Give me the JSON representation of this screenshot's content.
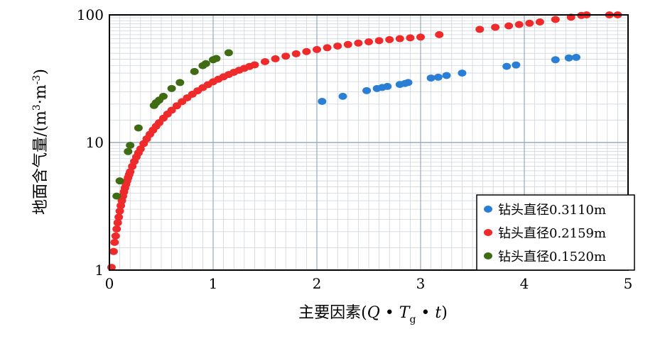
{
  "chart_data": {
    "type": "scatter",
    "title": "",
    "xlabel": "主要因素(Q • T g • t)",
    "xlabel_parts": {
      "prefix": "主要因素(",
      "q": "Q",
      "dot1": " • ",
      "t": "T",
      "sub": "g",
      "dot2": " • ",
      "tt": "t",
      "suffix": ")"
    },
    "ylabel": "地面含气量/(m³·m⁻³)",
    "ylabel_parts": {
      "prefix": "地面含气量/(m",
      "sup1": "3",
      "mid": "·m",
      "sup2": "-3",
      "suffix": ")"
    },
    "xlim": [
      0,
      5
    ],
    "ylim": [
      1,
      100
    ],
    "y_scale": "log",
    "grid": true,
    "legend_position": "bottom-right",
    "x_ticks": [
      "0",
      "1",
      "2",
      "3",
      "4",
      "5"
    ],
    "x_tick_values": [
      0,
      1,
      2,
      3,
      4,
      5
    ],
    "y_ticks": [
      "1",
      "10",
      "100"
    ],
    "y_tick_values": [
      1,
      10,
      100
    ],
    "series": [
      {
        "name": "钻头直径0.3110m",
        "color": "#2a7fd4",
        "x": [
          2.05,
          2.25,
          2.48,
          2.58,
          2.63,
          2.68,
          2.8,
          2.85,
          2.88,
          3.1,
          3.17,
          3.25,
          3.4,
          3.83,
          3.92,
          4.3,
          4.43,
          4.5
        ],
        "y": [
          21,
          23,
          25.5,
          26.5,
          27,
          27.5,
          28.5,
          29,
          29.5,
          32,
          32.5,
          33.5,
          35,
          39.5,
          40.5,
          44.5,
          46,
          46.5
        ]
      },
      {
        "name": "钻头直径0.2159m",
        "color": "#ee2a2a",
        "x": [
          0.02,
          0.04,
          0.05,
          0.06,
          0.07,
          0.08,
          0.09,
          0.1,
          0.11,
          0.12,
          0.13,
          0.14,
          0.15,
          0.16,
          0.17,
          0.18,
          0.19,
          0.2,
          0.22,
          0.24,
          0.26,
          0.28,
          0.3,
          0.33,
          0.36,
          0.39,
          0.42,
          0.45,
          0.48,
          0.52,
          0.56,
          0.6,
          0.65,
          0.7,
          0.75,
          0.8,
          0.85,
          0.9,
          0.95,
          1.0,
          1.05,
          1.1,
          1.15,
          1.2,
          1.25,
          1.3,
          1.35,
          1.4,
          1.5,
          1.6,
          1.7,
          1.8,
          1.9,
          2.0,
          2.1,
          2.2,
          2.3,
          2.4,
          2.5,
          2.6,
          2.7,
          2.8,
          2.9,
          3.0,
          3.18,
          3.57,
          3.72,
          3.85,
          3.95,
          4.05,
          4.15,
          4.3,
          4.45,
          4.55,
          4.6,
          4.82,
          4.9
        ],
        "y": [
          1.05,
          1.4,
          1.65,
          1.85,
          2.1,
          2.35,
          2.6,
          2.9,
          3.2,
          3.5,
          3.8,
          4.1,
          4.4,
          4.7,
          5.0,
          5.3,
          5.6,
          5.9,
          6.5,
          7.1,
          7.7,
          8.3,
          8.9,
          9.8,
          10.7,
          11.6,
          12.5,
          13.4,
          14.3,
          15.5,
          16.7,
          17.9,
          19.4,
          20.9,
          22.4,
          23.9,
          25.4,
          26.9,
          28.4,
          29.9,
          31.3,
          32.7,
          34.1,
          35.5,
          36.8,
          38.1,
          39.4,
          40.6,
          43.0,
          45.3,
          47.5,
          49.6,
          51.6,
          53.5,
          55.3,
          57.0,
          58.6,
          60.1,
          61.5,
          62.8,
          64.0,
          65.1,
          66.1,
          67.0,
          70.0,
          77.0,
          80.0,
          82.0,
          84.0,
          86.0,
          88.0,
          92.0,
          96.0,
          99.0,
          100.0,
          100.0,
          100.0
        ]
      },
      {
        "name": "钻头直径0.1520m",
        "color": "#3f6b12",
        "x": [
          0.07,
          0.1,
          0.18,
          0.2,
          0.28,
          0.43,
          0.45,
          0.48,
          0.52,
          0.6,
          0.68,
          0.82,
          0.9,
          0.93,
          1.0,
          1.03,
          1.15
        ],
        "y": [
          3.8,
          5.0,
          8.5,
          9.5,
          13.0,
          19.5,
          20.5,
          21.5,
          23.0,
          26.5,
          29.5,
          36.0,
          40.0,
          41.5,
          44.5,
          45.5,
          50.5
        ]
      }
    ]
  }
}
